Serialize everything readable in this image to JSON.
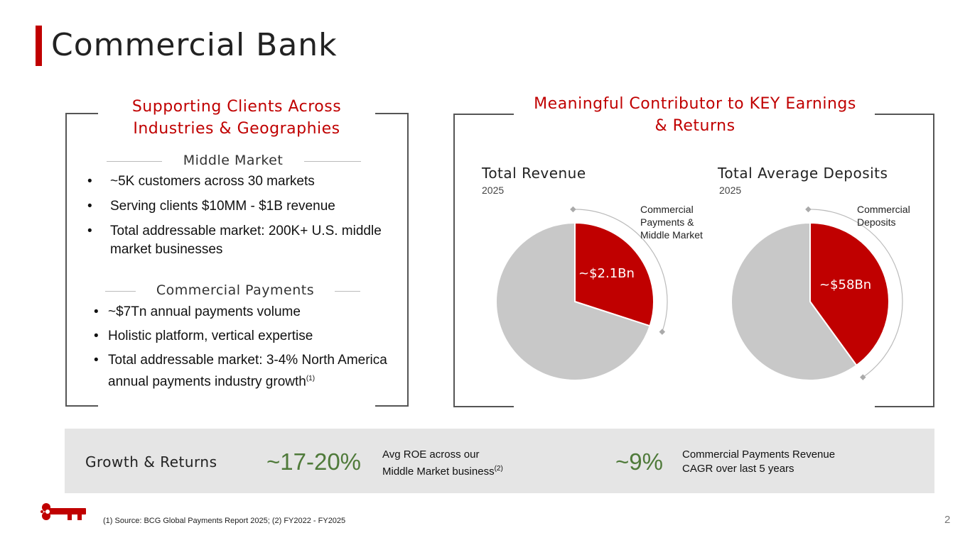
{
  "page": {
    "title": "Commercial Bank",
    "page_number": "2"
  },
  "left_panel": {
    "heading": "Supporting Clients Across Industries & Geographies",
    "middle_market": {
      "label": "Middle Market",
      "bullets": [
        "~5K customers across 30 markets",
        "Serving clients $10MM - $1B revenue",
        "Total addressable market: 200K+ U.S. middle market businesses"
      ]
    },
    "commercial_payments": {
      "label": "Commercial Payments",
      "bullets": [
        "~$7Tn annual payments volume",
        "Holistic platform, vertical expertise",
        "Total addressable market: 3-4% North America annual payments industry growth"
      ],
      "footnote_ref": "(1)"
    }
  },
  "right_panel": {
    "heading": "Meaningful Contributor to KEY Earnings & Returns"
  },
  "chart_data": [
    {
      "type": "pie",
      "title": "Total Revenue",
      "subtitle": "2025",
      "slices": [
        {
          "label": "Commercial Payments & Middle Market",
          "share": 0.3,
          "value_label": "~$2.1Bn",
          "color": "#c00000"
        },
        {
          "label": "",
          "share": 0.7,
          "color": "#c8c8c8"
        }
      ],
      "callout": "Commercial Payments & Middle Market"
    },
    {
      "type": "pie",
      "title": "Total Average Deposits",
      "subtitle": "2025",
      "slices": [
        {
          "label": "Commercial Deposits",
          "share": 0.4,
          "value_label": "~$58Bn",
          "color": "#c00000"
        },
        {
          "label": "",
          "share": 0.6,
          "color": "#c8c8c8"
        }
      ],
      "callout": "Commercial Deposits"
    }
  ],
  "growth": {
    "label": "Growth & Returns",
    "metric1": {
      "value": "~17-20%",
      "desc_line1": "Avg ROE across our",
      "desc_line2": "Middle Market business",
      "footnote_ref": "(2)"
    },
    "metric2": {
      "value": "~9%",
      "desc_line1": "Commercial Payments Revenue",
      "desc_line2": "CAGR over last 5 years"
    }
  },
  "footer": {
    "source": "(1) Source: BCG Global Payments Report 2025; (2) FY2022 - FY2025",
    "logo_icon": "key-logo-icon"
  },
  "colors": {
    "accent": "#c00000",
    "growth_green": "#4f7a3a",
    "band_gray": "#e5e5e5",
    "pie_gray": "#c8c8c8"
  }
}
